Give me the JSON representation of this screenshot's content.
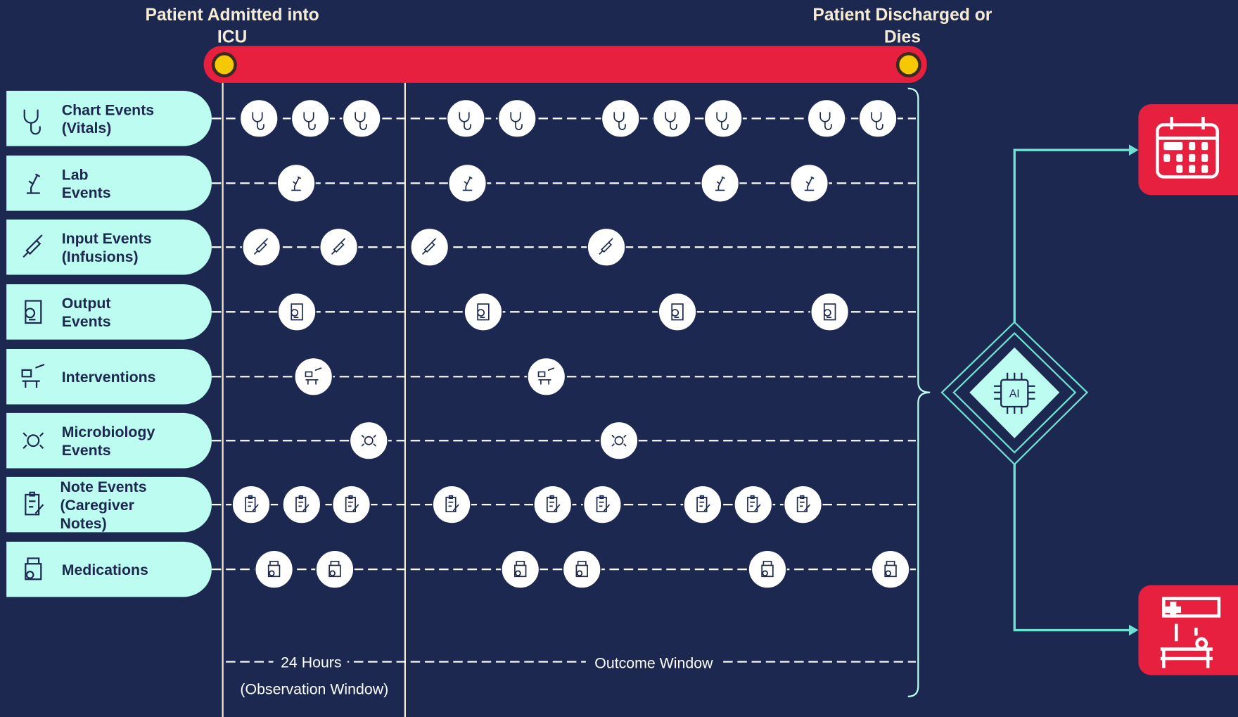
{
  "header": {
    "start_label": [
      "Patient Admitted into",
      "ICU"
    ],
    "end_label": [
      "Patient Discharged or",
      "Dies"
    ]
  },
  "rows": [
    {
      "label": [
        "Chart Events",
        "(Vitals)"
      ]
    },
    {
      "label": [
        "Lab",
        "Events"
      ]
    },
    {
      "label": [
        "Input Events",
        "(Infusions)"
      ]
    },
    {
      "label": [
        "Output",
        "Events"
      ]
    },
    {
      "label": [
        "Interventions"
      ]
    },
    {
      "label": [
        "Microbiology",
        "Events"
      ]
    },
    {
      "label": [
        "Note Events",
        "(Caregiver",
        "Notes)"
      ]
    },
    {
      "label": [
        "Medications"
      ]
    }
  ],
  "windows": {
    "observation": "24 Hours",
    "observation_note": "(Observation Window)",
    "outcome": "Outcome Window"
  },
  "model": {
    "label": "AI"
  }
}
